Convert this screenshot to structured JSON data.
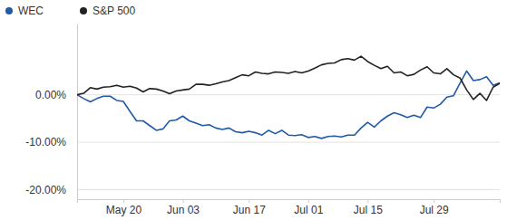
{
  "chart_data": {
    "type": "line",
    "categories": [
      null,
      null,
      null,
      null,
      null,
      null,
      null,
      "May 20",
      null,
      null,
      null,
      null,
      null,
      null,
      null,
      null,
      "Jun 03",
      null,
      null,
      null,
      null,
      null,
      null,
      null,
      null,
      null,
      "Jun 17",
      null,
      null,
      null,
      null,
      null,
      null,
      null,
      null,
      "Jul 01",
      null,
      null,
      null,
      null,
      null,
      null,
      null,
      null,
      "Jul 15",
      null,
      null,
      null,
      null,
      null,
      null,
      null,
      null,
      null,
      "Jul 29",
      null,
      null,
      null,
      null,
      null,
      null,
      null,
      null,
      null,
      null
    ],
    "series": [
      {
        "name": "WEC",
        "color": "#1f5ba8",
        "values": [
          0,
          -0.8,
          -1.5,
          -0.8,
          -0.3,
          -0.3,
          -1.2,
          -1.4,
          -3.5,
          -5.5,
          -5.5,
          -6.5,
          -7.5,
          -7.2,
          -5.5,
          -5.3,
          -4.5,
          -5.5,
          -6.0,
          -6.5,
          -6.3,
          -7.0,
          -7.3,
          -7.0,
          -7.8,
          -8.0,
          -7.7,
          -8.0,
          -8.5,
          -7.5,
          -8.2,
          -7.5,
          -8.5,
          -8.6,
          -8.4,
          -9.0,
          -8.8,
          -9.2,
          -8.8,
          -8.7,
          -8.9,
          -8.5,
          -8.5,
          -7.0,
          -5.8,
          -6.8,
          -5.5,
          -4.5,
          -3.8,
          -4.2,
          -4.8,
          -4.3,
          -4.8,
          -2.6,
          -2.8,
          -2.0,
          -0.5,
          -0.2,
          2.5,
          5.0,
          3.0,
          3.2,
          3.8,
          2.0,
          2.5
        ]
      },
      {
        "name": "S&P 500",
        "color": "#222222",
        "values": [
          0,
          0.3,
          1.5,
          1.2,
          1.6,
          1.7,
          2.0,
          1.6,
          1.8,
          1.4,
          0.6,
          1.3,
          1.2,
          0.8,
          0.2,
          0.8,
          1.0,
          1.2,
          2.2,
          2.2,
          2.0,
          2.3,
          2.7,
          3.0,
          3.6,
          4.2,
          4.0,
          4.8,
          4.5,
          4.4,
          4.8,
          4.7,
          4.5,
          4.9,
          4.6,
          5.0,
          5.6,
          6.3,
          6.6,
          6.7,
          7.4,
          7.6,
          7.3,
          8.1,
          7.0,
          6.2,
          5.5,
          6.0,
          4.6,
          4.8,
          4.0,
          4.3,
          5.2,
          5.9,
          4.6,
          4.4,
          5.5,
          4.2,
          3.5,
          1.0,
          -1.0,
          0.3,
          -1.2,
          1.6,
          2.4
        ]
      }
    ],
    "ylim": [
      -22,
      15
    ],
    "yticks": [
      {
        "value": 0,
        "label": "0.00%"
      },
      {
        "value": -10,
        "label": "-10.00%"
      },
      {
        "value": -20,
        "label": "-20.00%"
      }
    ],
    "grid": true,
    "legend": "top-left"
  }
}
